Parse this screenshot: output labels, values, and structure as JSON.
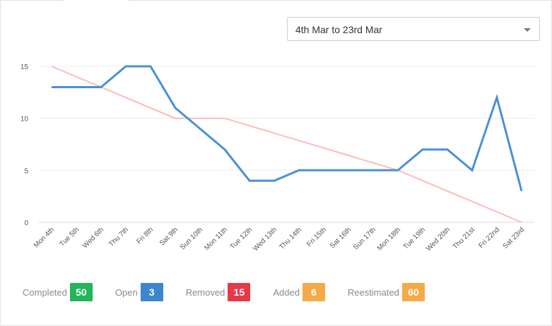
{
  "date_range": {
    "value": "4th Mar to 23rd Mar"
  },
  "chart_data": {
    "type": "line",
    "categories": [
      "Mon 4th",
      "Tue 5th",
      "Wed 6th",
      "Thu 7th",
      "Fri 8th",
      "Sat 9th",
      "Sun 10th",
      "Mon 11th",
      "Tue 12th",
      "Wed 13th",
      "Thu 14th",
      "Fri 15th",
      "Sat 16th",
      "Sun 17th",
      "Mon 18th",
      "Tue 19th",
      "Wed 20th",
      "Thu 21st",
      "Fri 22nd",
      "Sat 23rd"
    ],
    "series": [
      {
        "values": [
          13,
          13,
          13,
          15,
          15,
          11,
          9,
          7,
          4,
          4,
          5,
          5,
          5,
          5,
          5,
          7,
          7,
          5,
          12,
          3
        ],
        "color": "#4a90d6"
      },
      {
        "values": [
          15,
          null,
          null,
          null,
          null,
          10,
          null,
          10,
          null,
          null,
          null,
          null,
          null,
          null,
          5,
          null,
          null,
          null,
          null,
          0
        ],
        "color": "#f9bdbb",
        "interpolate": true
      }
    ],
    "yticks": [
      0,
      5,
      10,
      15
    ],
    "ylim": [
      0,
      15
    ],
    "grid": true,
    "legend": false
  },
  "summary": {
    "items": [
      {
        "label": "Completed",
        "value": "50",
        "color": "#22b55b"
      },
      {
        "label": "Open",
        "value": "3",
        "color": "#3d86cf"
      },
      {
        "label": "Removed",
        "value": "15",
        "color": "#e53948"
      },
      {
        "label": "Added",
        "value": "6",
        "color": "#f5a947"
      },
      {
        "label": "Reestimated",
        "value": "60",
        "color": "#f5a947"
      }
    ]
  }
}
